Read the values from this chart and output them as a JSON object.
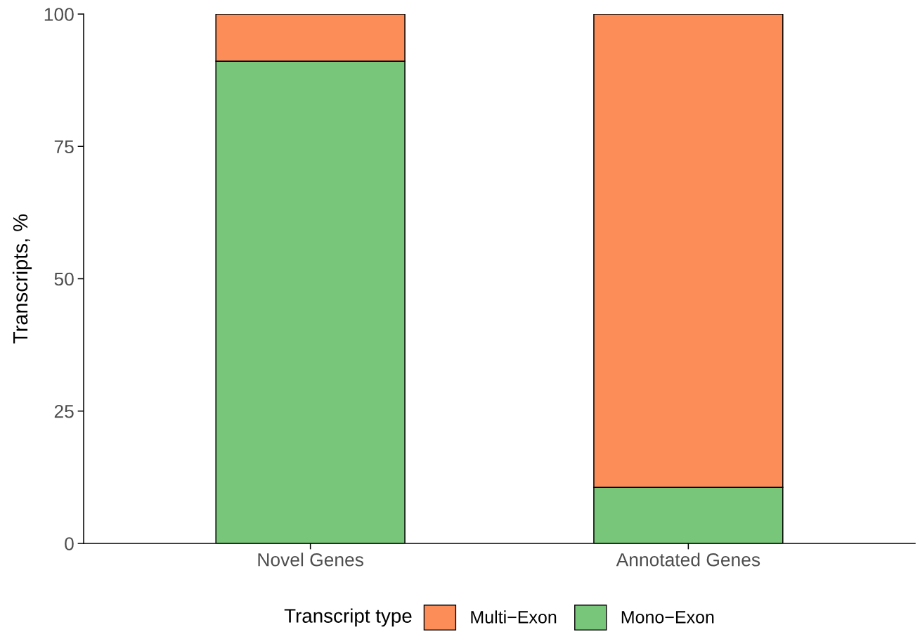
{
  "chart_data": {
    "type": "bar",
    "stacked": true,
    "ylabel": "Transcripts, %",
    "legend_title": "Transcript type",
    "categories": [
      "Novel Genes",
      "Annotated Genes"
    ],
    "series": [
      {
        "name": "Mono−Exon",
        "color": "#78c679",
        "values": [
          91.1,
          10.6
        ]
      },
      {
        "name": "Multi−Exon",
        "color": "#fc8d59",
        "values": [
          8.9,
          89.4
        ]
      }
    ],
    "ylim": [
      0,
      100
    ],
    "yticks": [
      0,
      25,
      50,
      75,
      100
    ],
    "grid": false,
    "legend": "bottom"
  }
}
